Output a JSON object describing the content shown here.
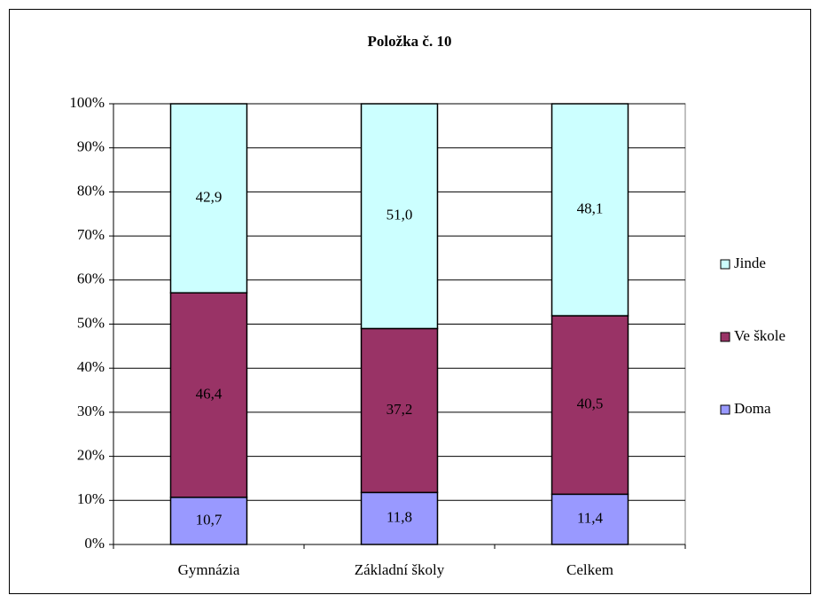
{
  "chart_data": {
    "type": "stacked_bar",
    "title": "Položka č. 10",
    "categories": [
      "Gymnázia",
      "Základní školy",
      "Celkem"
    ],
    "series": [
      {
        "name": "Doma",
        "color": "#9999ff",
        "values": [
          10.7,
          11.8,
          11.4
        ],
        "value_labels": [
          "10,7",
          "11,8",
          "11,4"
        ]
      },
      {
        "name": "Ve škole",
        "color": "#993366",
        "values": [
          46.4,
          37.2,
          40.5
        ],
        "value_labels": [
          "46,4",
          "37,2",
          "40,5"
        ]
      },
      {
        "name": "Jinde",
        "color": "#ccffff",
        "values": [
          42.9,
          51.0,
          48.1
        ],
        "value_labels": [
          "42,9",
          "51,0",
          "48,1"
        ]
      }
    ],
    "ylim": [
      0,
      100
    ],
    "yticks": [
      {
        "value": 0,
        "label": "0%"
      },
      {
        "value": 10,
        "label": "10%"
      },
      {
        "value": 20,
        "label": "20%"
      },
      {
        "value": 30,
        "label": "30%"
      },
      {
        "value": 40,
        "label": "40%"
      },
      {
        "value": 50,
        "label": "50%"
      },
      {
        "value": 60,
        "label": "60%"
      },
      {
        "value": 70,
        "label": "70%"
      },
      {
        "value": 80,
        "label": "80%"
      },
      {
        "value": 90,
        "label": "90%"
      },
      {
        "value": 100,
        "label": "100%"
      }
    ],
    "grid": true,
    "legend": "right"
  }
}
